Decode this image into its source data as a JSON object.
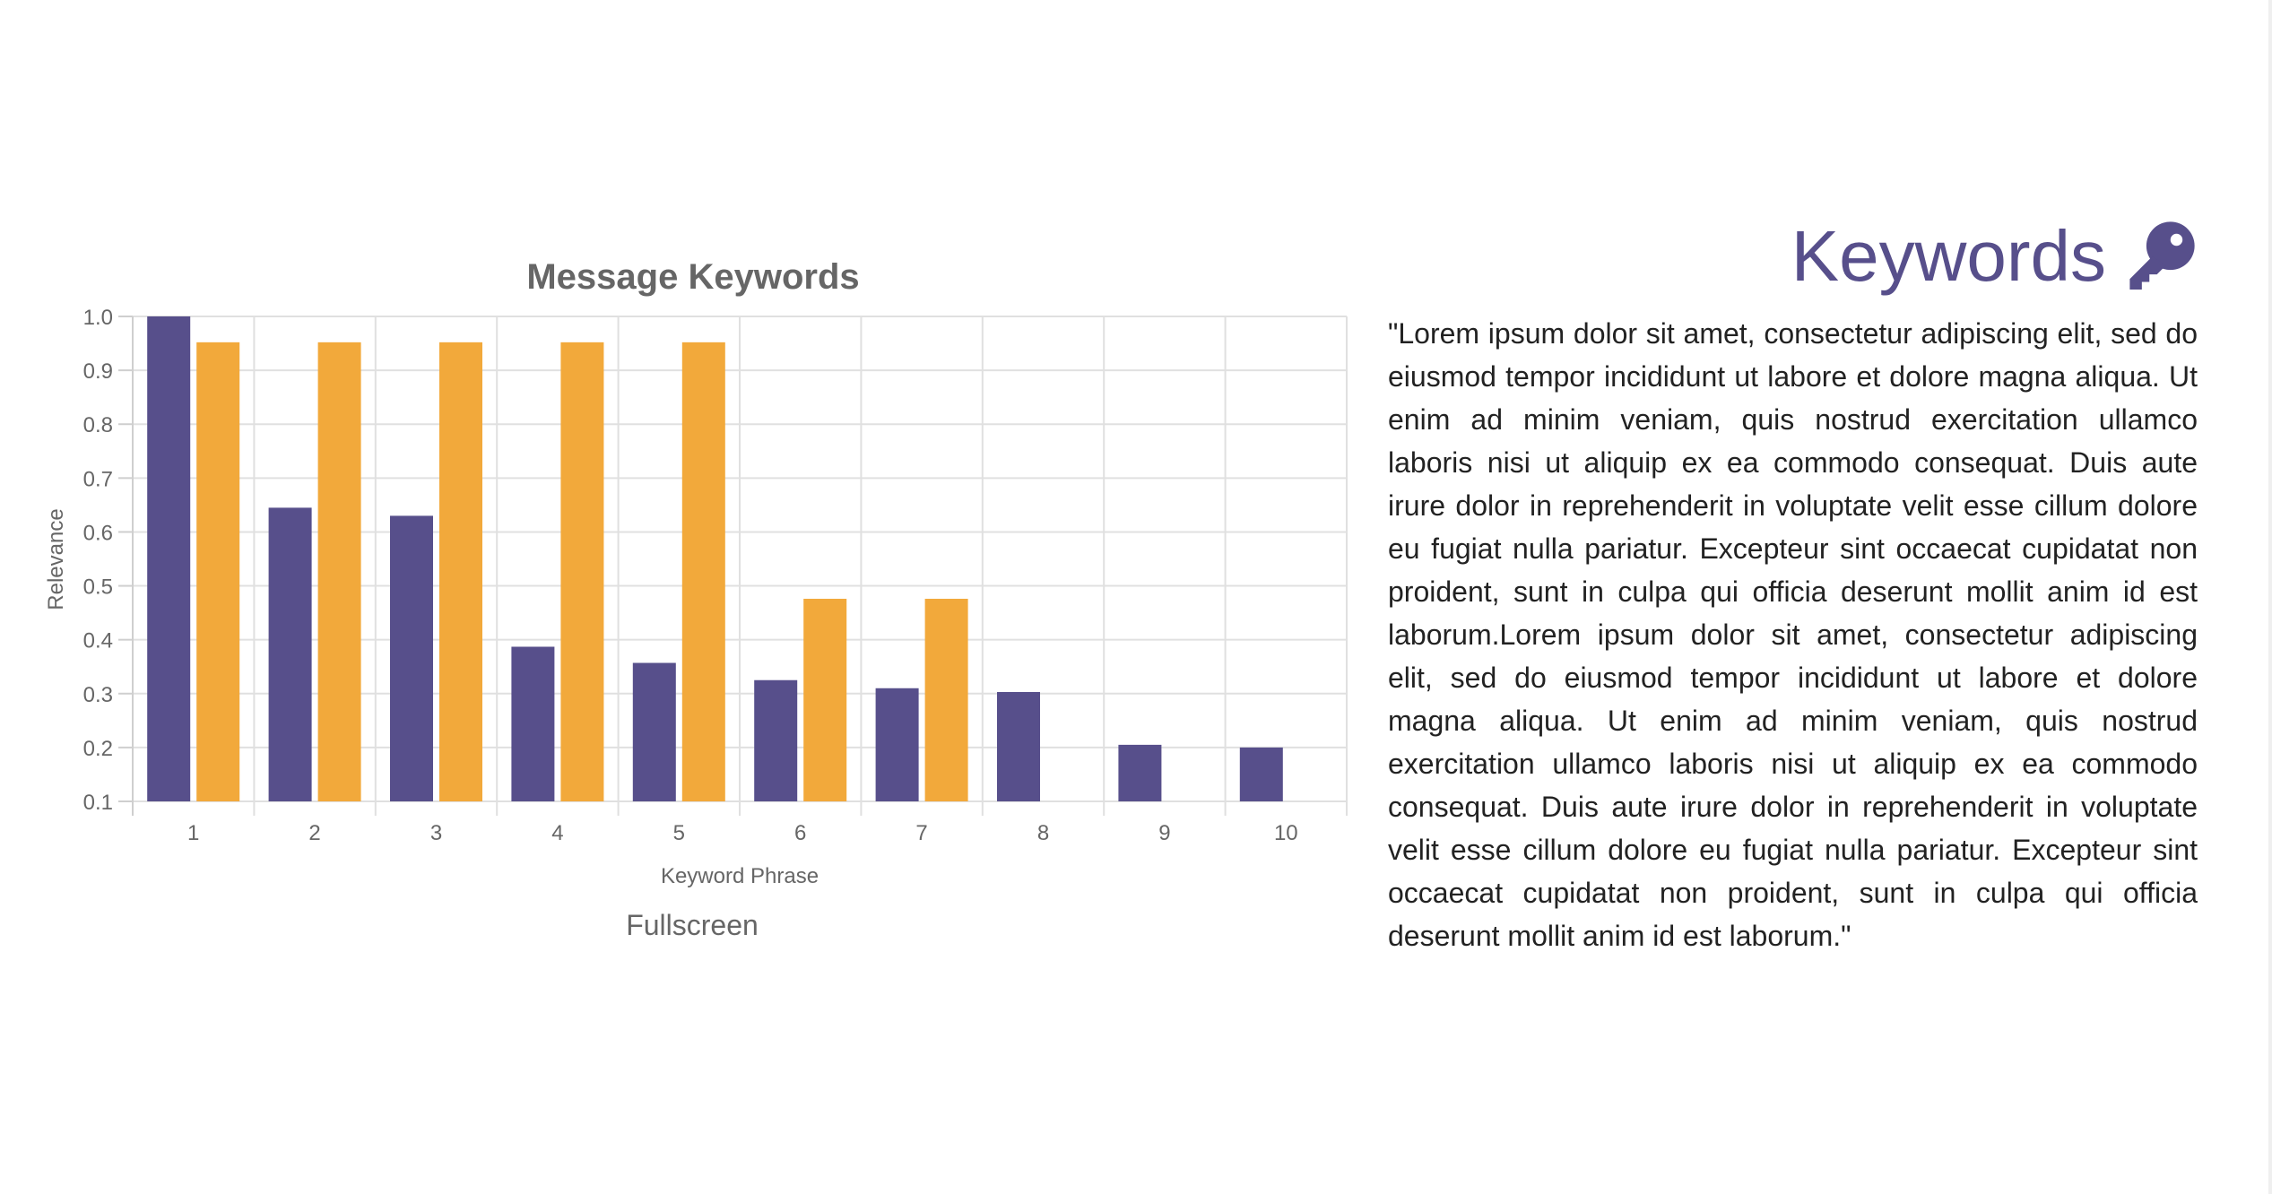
{
  "side": {
    "heading": "Keywords",
    "heading_icon": "key-icon",
    "accent_color": "#574f8b",
    "text": "\"Lorem ipsum dolor sit amet, consectetur adipiscing elit, sed do eiusmod tempor incididunt ut labore et dolore magna aliqua. Ut enim ad minim veniam, quis nostrud exercitation ullamco laboris nisi ut aliquip ex ea commodo consequat. Duis aute irure dolor in reprehenderit in voluptate velit esse cillum dolore eu fugiat nulla pariatur. Excepteur sint occaecat cupidatat non proident, sunt in culpa qui officia deserunt mollit anim id est laborum.Lorem ipsum dolor sit amet, consectetur adipiscing elit, sed do eiusmod tempor incididunt ut labore et dolore magna aliqua. Ut enim ad minim veniam, quis nostrud exercitation ullamco laboris nisi ut aliquip ex ea commodo consequat. Duis aute irure dolor in reprehenderit in voluptate velit esse cillum dolore eu fugiat nulla pariatur. Excepteur sint occaecat cupidatat non proident, sunt in culpa qui officia deserunt mollit anim id est laborum.\""
  },
  "fullscreen_label": "Fullscreen",
  "chart_data": {
    "type": "bar",
    "title": "Message Keywords",
    "xlabel": "Keyword Phrase",
    "ylabel": "Relevance",
    "categories": [
      "1",
      "2",
      "3",
      "4",
      "5",
      "6",
      "7",
      "8",
      "9",
      "10"
    ],
    "ylim": [
      0.1,
      1.0
    ],
    "yticks": [
      "0.1",
      "0.2",
      "0.3",
      "0.4",
      "0.5",
      "0.6",
      "0.7",
      "0.8",
      "0.9",
      "1.0"
    ],
    "grid": true,
    "series": [
      {
        "color": "#574f8b",
        "values": [
          1.0,
          0.645,
          0.63,
          0.387,
          0.357,
          0.325,
          0.31,
          0.303,
          0.205,
          0.2
        ]
      },
      {
        "color": "#f2a93b",
        "values": [
          0.952,
          0.952,
          0.952,
          0.952,
          0.952,
          0.476,
          0.476,
          null,
          null,
          null
        ]
      }
    ]
  }
}
